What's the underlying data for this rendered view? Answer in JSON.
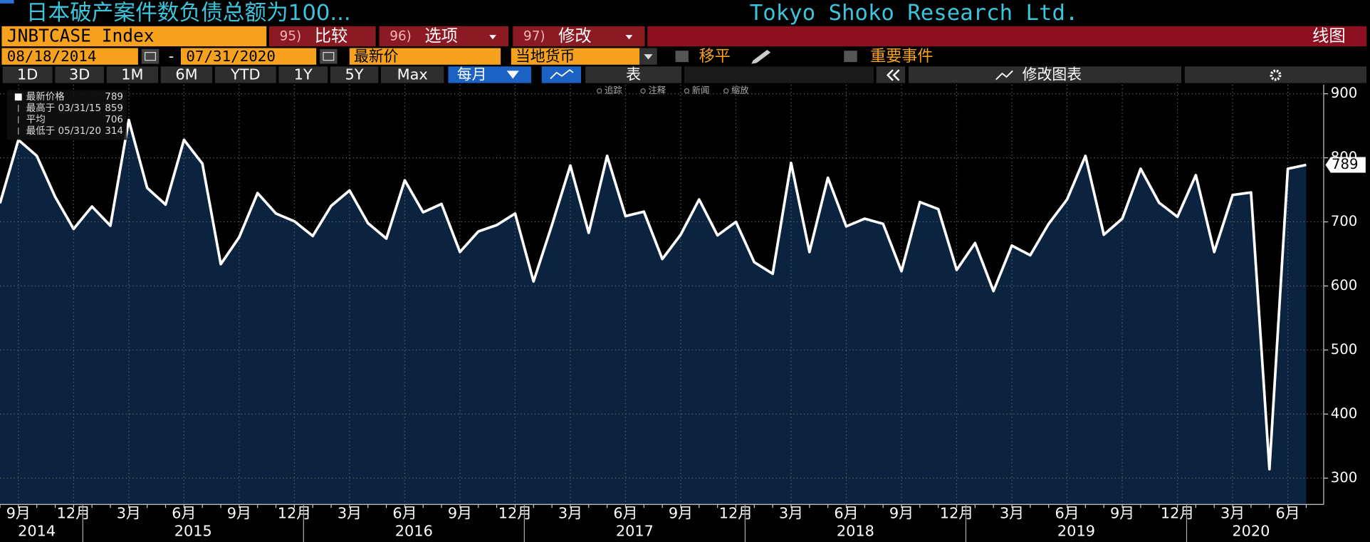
{
  "header": {
    "title": "日本破产案件数负债总额为100...",
    "source": "Tokyo Shoko Research Ltd."
  },
  "toolbar": {
    "ticker": "JNBTCASE Index",
    "buttons": [
      {
        "num": "95)",
        "label": "比较"
      },
      {
        "num": "96)",
        "label": "选项"
      },
      {
        "num": "97)",
        "label": "修改"
      }
    ],
    "chart_type": "线图"
  },
  "settings": {
    "start_date": "08/18/2014",
    "separator": "-",
    "end_date": "07/31/2020",
    "field": "最新价",
    "currency": "当地货币",
    "smooth": "移平",
    "events": "重要事件"
  },
  "periods": [
    "1D",
    "3D",
    "1M",
    "6M",
    "YTD",
    "1Y",
    "5Y",
    "Max"
  ],
  "frequency": "每月",
  "table_button": "表",
  "edit_chart": "修改图表",
  "chart_tools": [
    "追踪",
    "注释",
    "新闻",
    "缩放"
  ],
  "legend": {
    "rows": [
      {
        "label": "最新价格",
        "value": 789
      },
      {
        "label": "最高于 03/31/15",
        "value": 859
      },
      {
        "label": "平均",
        "value": 706
      },
      {
        "label": "最低于 05/31/20",
        "value": 314
      }
    ]
  },
  "chart_data": {
    "type": "area",
    "title": null,
    "x": [
      "2014-08",
      "2014-09",
      "2014-10",
      "2014-11",
      "2014-12",
      "2015-01",
      "2015-02",
      "2015-03",
      "2015-04",
      "2015-05",
      "2015-06",
      "2015-07",
      "2015-08",
      "2015-09",
      "2015-10",
      "2015-11",
      "2015-12",
      "2016-01",
      "2016-02",
      "2016-03",
      "2016-04",
      "2016-05",
      "2016-06",
      "2016-07",
      "2016-08",
      "2016-09",
      "2016-10",
      "2016-11",
      "2016-12",
      "2017-01",
      "2017-02",
      "2017-03",
      "2017-04",
      "2017-05",
      "2017-06",
      "2017-07",
      "2017-08",
      "2017-09",
      "2017-10",
      "2017-11",
      "2017-12",
      "2018-01",
      "2018-02",
      "2018-03",
      "2018-04",
      "2018-05",
      "2018-06",
      "2018-07",
      "2018-08",
      "2018-09",
      "2018-10",
      "2018-11",
      "2018-12",
      "2019-01",
      "2019-02",
      "2019-03",
      "2019-04",
      "2019-05",
      "2019-06",
      "2019-07",
      "2019-08",
      "2019-09",
      "2019-10",
      "2019-11",
      "2019-12",
      "2020-01",
      "2020-02",
      "2020-03",
      "2020-04",
      "2020-05",
      "2020-06",
      "2020-07"
    ],
    "values": [
      729,
      828,
      803,
      739,
      689,
      724,
      694,
      859,
      753,
      727,
      828,
      791,
      634,
      676,
      745,
      713,
      701,
      678,
      725,
      749,
      698,
      674,
      765,
      715,
      728,
      653,
      685,
      695,
      713,
      607,
      695,
      788,
      683,
      803,
      709,
      716,
      642,
      680,
      735,
      679,
      700,
      637,
      619,
      792,
      653,
      769,
      693,
      705,
      697,
      623,
      731,
      720,
      625,
      667,
      592,
      663,
      648,
      697,
      735,
      803,
      680,
      705,
      783,
      730,
      708,
      773,
      653,
      742,
      746,
      314,
      783,
      789
    ],
    "color": "#ffffff",
    "fill": "#0c2340",
    "ylim": [
      259,
      914
    ],
    "yticks": [
      300,
      400,
      500,
      600,
      700,
      800,
      900
    ],
    "grid": true,
    "xticks": [
      {
        "value": "2014-09",
        "label": "9月"
      },
      {
        "value": "2014-12",
        "label": "12月"
      },
      {
        "value": "2015-03",
        "label": "3月"
      },
      {
        "value": "2015-06",
        "label": "6月"
      },
      {
        "value": "2015-09",
        "label": "9月"
      },
      {
        "value": "2015-12",
        "label": "12月"
      },
      {
        "value": "2016-03",
        "label": "3月"
      },
      {
        "value": "2016-06",
        "label": "6月"
      },
      {
        "value": "2016-09",
        "label": "9月"
      },
      {
        "value": "2016-12",
        "label": "12月"
      },
      {
        "value": "2017-03",
        "label": "3月"
      },
      {
        "value": "2017-06",
        "label": "6月"
      },
      {
        "value": "2017-09",
        "label": "9月"
      },
      {
        "value": "2017-12",
        "label": "12月"
      },
      {
        "value": "2018-03",
        "label": "3月"
      },
      {
        "value": "2018-06",
        "label": "6月"
      },
      {
        "value": "2018-09",
        "label": "9月"
      },
      {
        "value": "2018-12",
        "label": "12月"
      },
      {
        "value": "2019-03",
        "label": "3月"
      },
      {
        "value": "2019-06",
        "label": "6月"
      },
      {
        "value": "2019-09",
        "label": "9月"
      },
      {
        "value": "2019-12",
        "label": "12月"
      },
      {
        "value": "2020-03",
        "label": "3月"
      },
      {
        "value": "2020-06",
        "label": "6月"
      }
    ],
    "x_years": [
      "2014",
      "2015",
      "2016",
      "2017",
      "2018",
      "2019",
      "2020"
    ]
  }
}
